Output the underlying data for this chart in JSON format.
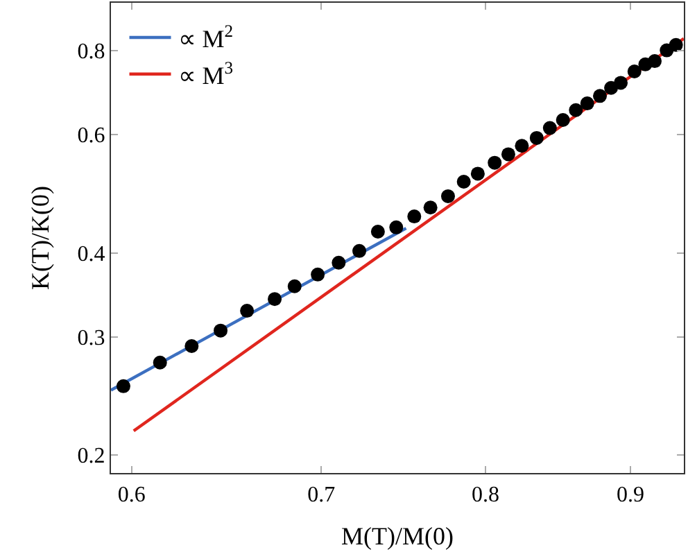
{
  "chart_data": {
    "type": "scatter",
    "xlabel": "M(T)/M(0)",
    "ylabel": "K(T)/K(0)",
    "log": "xy",
    "xlim": [
      0.59,
      0.94
    ],
    "ylim": [
      0.188,
      0.943
    ],
    "xticks": [
      0.6,
      0.7,
      0.8,
      0.9
    ],
    "yticks": [
      0.2,
      0.3,
      0.4,
      0.6,
      0.8
    ],
    "legend": "top left",
    "series": [
      {
        "name": "∝ M$^{2}$",
        "type": "line",
        "color": "#3c6fc0",
        "x": [
          0.59,
          0.75
        ],
        "values": [
          0.2498,
          0.4352
        ]
      },
      {
        "name": "∝ M$^{3}$",
        "type": "line",
        "color": "#e0261e",
        "x": [
          0.601,
          0.94
        ],
        "values": [
          0.2172,
          0.834
        ]
      },
      {
        "marker": "circle",
        "color": "#000000",
        "x": [
          0.596,
          0.614,
          0.63,
          0.645,
          0.659,
          0.674,
          0.685,
          0.698,
          0.71,
          0.722,
          0.733,
          0.744,
          0.755,
          0.765,
          0.776,
          0.786,
          0.795,
          0.806,
          0.815,
          0.824,
          0.834,
          0.843,
          0.852,
          0.861,
          0.869,
          0.878,
          0.886,
          0.893,
          0.903,
          0.911,
          0.918,
          0.927,
          0.934
        ],
        "values": [
          0.2532,
          0.2746,
          0.2905,
          0.3064,
          0.3279,
          0.3414,
          0.3567,
          0.3713,
          0.3867,
          0.4026,
          0.4302,
          0.4365,
          0.4532,
          0.4672,
          0.4857,
          0.5105,
          0.5248,
          0.5448,
          0.5609,
          0.5774,
          0.5932,
          0.6137,
          0.6309,
          0.6527,
          0.6678,
          0.6851,
          0.7043,
          0.7167,
          0.7452,
          0.7634,
          0.772,
          0.801,
          0.816
        ]
      }
    ]
  }
}
